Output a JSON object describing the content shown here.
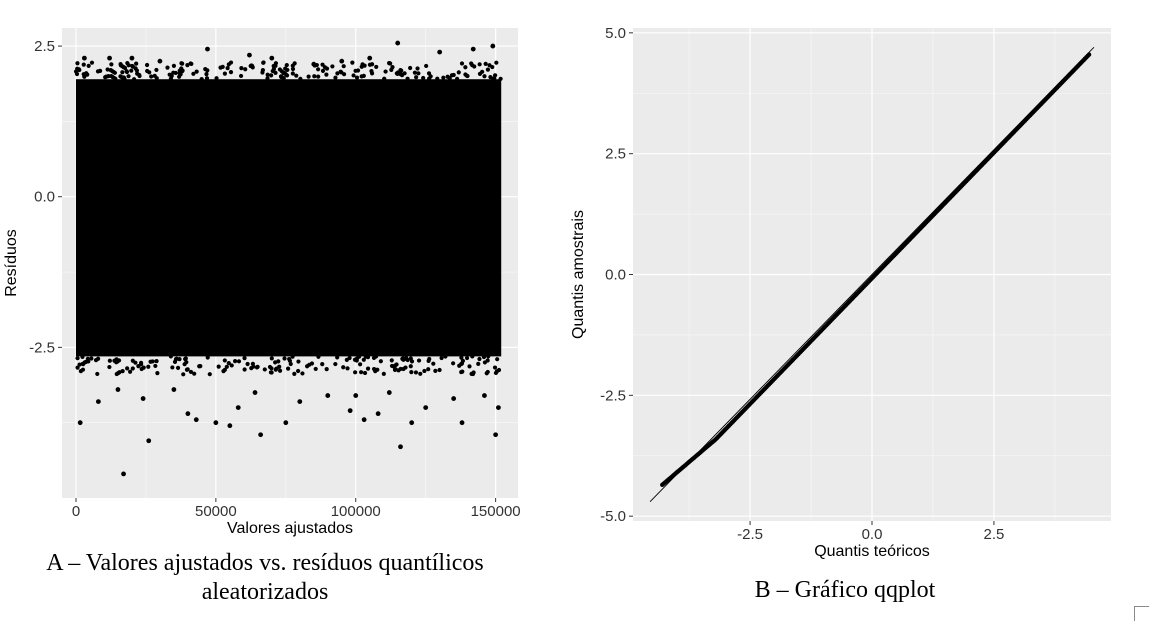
{
  "colors": {
    "panel_background": "#ebebeb",
    "grid_major": "#ffffff",
    "points": "#000000",
    "reference_line": "#000000"
  },
  "chart_data": [
    {
      "type": "scatter",
      "title": "",
      "xlabel": "Valores ajustados",
      "ylabel": "Resíduos",
      "xlim": [
        -5000,
        158000
      ],
      "ylim": [
        -5.0,
        2.8
      ],
      "x_ticks": [
        0,
        50000,
        100000,
        150000
      ],
      "x_tick_labels": [
        "0",
        "50000",
        "100000",
        "150000"
      ],
      "y_ticks": [
        2.5,
        0.0,
        -2.5
      ],
      "y_tick_labels": [
        "2.5",
        "0.0",
        "-2.5"
      ],
      "grid": true,
      "dense_band": {
        "x_range": [
          0,
          152000
        ],
        "y_range": [
          -2.65,
          1.95
        ]
      },
      "outlier_points": [
        [
          1500,
          -3.75
        ],
        [
          3000,
          2.3
        ],
        [
          8000,
          -3.4
        ],
        [
          12000,
          2.3
        ],
        [
          15000,
          -3.2
        ],
        [
          17000,
          -4.6
        ],
        [
          20000,
          2.3
        ],
        [
          24000,
          -3.35
        ],
        [
          26000,
          -4.05
        ],
        [
          30000,
          2.25
        ],
        [
          35000,
          -3.2
        ],
        [
          40000,
          -3.6
        ],
        [
          43000,
          -3.7
        ],
        [
          47000,
          2.45
        ],
        [
          50000,
          -3.75
        ],
        [
          55000,
          -3.8
        ],
        [
          58000,
          -3.5
        ],
        [
          62000,
          2.35
        ],
        [
          64000,
          -3.25
        ],
        [
          66000,
          -3.95
        ],
        [
          70000,
          2.3
        ],
        [
          75000,
          -3.75
        ],
        [
          80000,
          -3.4
        ],
        [
          85000,
          2.2
        ],
        [
          90000,
          -3.3
        ],
        [
          95000,
          2.25
        ],
        [
          98000,
          -3.55
        ],
        [
          100000,
          -3.3
        ],
        [
          103000,
          -3.7
        ],
        [
          105000,
          2.3
        ],
        [
          108000,
          -3.6
        ],
        [
          112000,
          -3.25
        ],
        [
          115000,
          2.55
        ],
        [
          116000,
          -4.15
        ],
        [
          120000,
          -3.75
        ],
        [
          125000,
          -3.5
        ],
        [
          130000,
          2.4
        ],
        [
          135000,
          -3.35
        ],
        [
          138000,
          -3.75
        ],
        [
          142000,
          2.45
        ],
        [
          146000,
          -3.3
        ],
        [
          149000,
          2.5
        ],
        [
          150000,
          -3.95
        ],
        [
          151000,
          -3.5
        ]
      ],
      "caption": [
        "A – Valores ajustados vs. resíduos quantílicos",
        "aleatorizados"
      ]
    },
    {
      "type": "scatter",
      "title": "",
      "xlabel": "Quantis teóricos",
      "ylabel": "Quantis amostrais",
      "xlim": [
        -4.9,
        4.9
      ],
      "ylim": [
        -5.1,
        5.1
      ],
      "x_ticks": [
        -2.5,
        0.0,
        2.5
      ],
      "x_tick_labels": [
        "-2.5",
        "0.0",
        "2.5"
      ],
      "y_ticks": [
        5.0,
        2.5,
        0.0,
        -2.5,
        -5.0
      ],
      "y_tick_labels": [
        "5.0",
        "2.5",
        "0.0",
        "-2.5",
        "-5.0"
      ],
      "grid": true,
      "reference_line": {
        "x": [
          -4.55,
          4.55
        ],
        "y": [
          -4.7,
          4.7
        ]
      },
      "sample_quantiles_range": {
        "x": [
          -4.3,
          4.45
        ],
        "y": [
          -4.55,
          4.55
        ]
      },
      "caption": [
        "B – Gráfico qqplot"
      ]
    }
  ]
}
